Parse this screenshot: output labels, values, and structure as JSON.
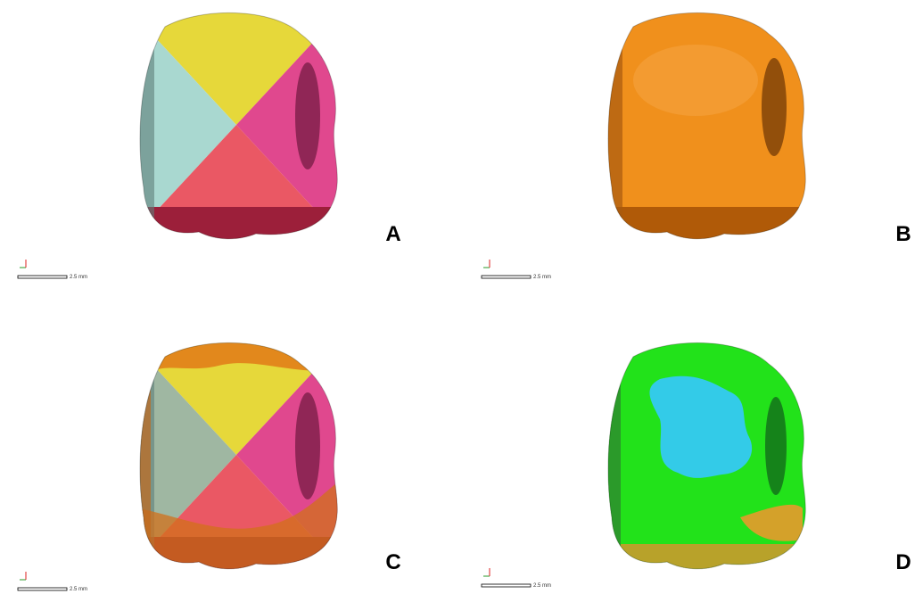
{
  "panels": [
    {
      "label": "A",
      "scale": "2.5 mm"
    },
    {
      "label": "B",
      "scale": "2.5 mm"
    },
    {
      "label": "C",
      "scale": "2.5 mm"
    },
    {
      "label": "D",
      "scale": "2.5 mm"
    }
  ]
}
